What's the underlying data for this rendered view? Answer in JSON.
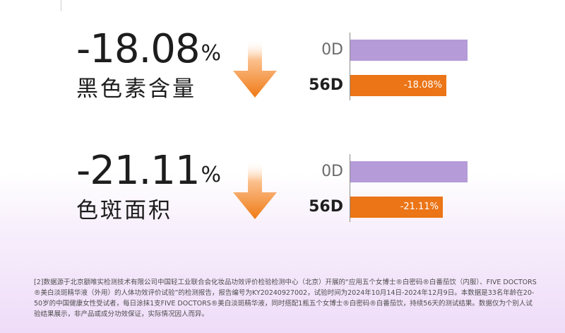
{
  "metrics": [
    {
      "value": "-18.08",
      "unit": "%",
      "label": "黑色素含量"
    },
    {
      "value": "-21.11",
      "unit": "%",
      "label": "色斑面积"
    }
  ],
  "chart_data": [
    {
      "type": "bar",
      "orientation": "horizontal",
      "categories": [
        "0D",
        "56D"
      ],
      "values": [
        100,
        81.92
      ],
      "data_labels": [
        "",
        "-18.08%"
      ],
      "title": "",
      "xlabel": "",
      "ylabel": "",
      "xlim": [
        0,
        100
      ],
      "grid": false,
      "colors": [
        "#b59bd8",
        "#eb7517"
      ]
    },
    {
      "type": "bar",
      "orientation": "horizontal",
      "categories": [
        "0D",
        "56D"
      ],
      "values": [
        100,
        78.89
      ],
      "data_labels": [
        "",
        "-21.11%"
      ],
      "title": "",
      "xlabel": "",
      "ylabel": "",
      "xlim": [
        0,
        100
      ],
      "grid": false,
      "colors": [
        "#b59bd8",
        "#eb7517"
      ]
    }
  ],
  "footnote": "[2]数据源于北京额唯实检测技术有限公司中国轻工业联合会化妆品功效评价检验检测中心（北京）开展的“应用五个女博士®白密码®白番茄饮（内服）、FIVE DOCTORS®美白淡斑精华液（外用）的人体功效评价试验”的检测报告，报告编号为KY20240927002，试验时间为2024年10月14日-2024年12月9日。本数据是33名年龄在20-50岁的中国健康女性受试者，每日涂抹1支FIVE DOCTORS®美白淡斑精华液，同时搭配1瓶五个女博士®白密码®白番茄饮，持续56天的测试结果。数据仅为个别人试验结果展示，非产品或成分功效保证，实际情况因人而异。",
  "colors": {
    "accent": "#eb7517",
    "baseline": "#b59bd8"
  },
  "icons": [
    "down-arrow-icon"
  ]
}
